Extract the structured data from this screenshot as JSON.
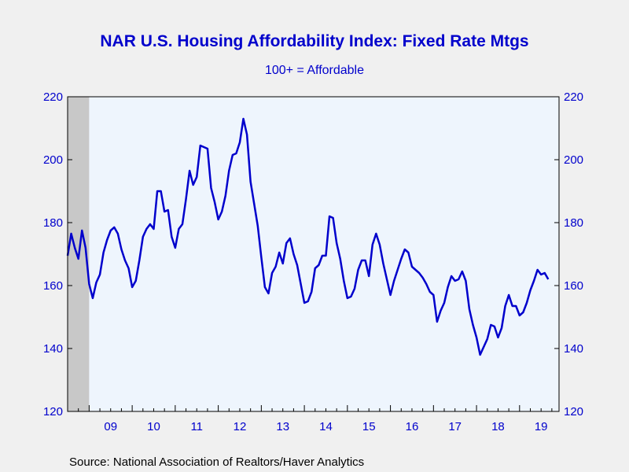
{
  "chart_data": {
    "type": "line",
    "title": "NAR U.S. Housing Affordability Index: Fixed Rate Mtgs",
    "subtitle": "100+ = Affordable",
    "source": "Source:  National Association of Realtors/Haver Analytics",
    "xlabel": "",
    "ylabel": "",
    "ylim": [
      120,
      220
    ],
    "yticks": [
      120,
      140,
      160,
      180,
      200,
      220
    ],
    "y_axis_right": true,
    "x_range": [
      2008.5,
      2019.9167
    ],
    "x_tick_labels": [
      "09",
      "10",
      "11",
      "12",
      "13",
      "14",
      "15",
      "16",
      "17",
      "18",
      "19"
    ],
    "recession_shading": [
      [
        2008.5,
        2009.0
      ]
    ],
    "colors": {
      "line": "#0000cc",
      "plot_bg": "#eef5fd",
      "recession": "#c8c8c8",
      "text": "#0000cc"
    },
    "series": [
      {
        "start": 2008.5,
        "step_months": 1,
        "values": [
          169.5,
          176.5,
          172.0,
          168.5,
          177.5,
          172.0,
          160.5,
          156.0,
          161.0,
          163.5,
          170.5,
          174.5,
          177.5,
          178.5,
          176.5,
          171.5,
          168.0,
          165.5,
          159.5,
          161.5,
          168.0,
          175.5,
          178.0,
          179.5,
          178.0,
          190.0,
          190.0,
          183.5,
          184.0,
          175.5,
          172.0,
          178.0,
          179.5,
          187.5,
          196.5,
          192.0,
          194.5,
          204.5,
          204.0,
          203.5,
          191.0,
          186.5,
          181.0,
          183.5,
          188.5,
          196.5,
          201.5,
          202.0,
          205.5,
          213.0,
          208.0,
          193.0,
          186.0,
          179.0,
          169.0,
          159.5,
          157.5,
          164.0,
          166.0,
          170.5,
          167.0,
          173.5,
          175.0,
          170.0,
          166.5,
          160.5,
          154.5,
          155.0,
          158.0,
          165.5,
          166.5,
          169.5,
          169.5,
          182.0,
          181.5,
          173.5,
          168.5,
          161.5,
          156.0,
          156.5,
          159.0,
          165.0,
          168.0,
          168.0,
          163.0,
          173.0,
          176.5,
          173.0,
          167.0,
          162.0,
          157.0,
          161.5,
          165.0,
          168.5,
          171.5,
          170.5,
          166.0,
          165.0,
          164.0,
          162.5,
          160.5,
          158.0,
          157.0,
          148.5,
          152.0,
          154.5,
          159.5,
          163.0,
          161.5,
          162.0,
          164.5,
          161.5,
          152.5,
          147.5,
          143.5,
          138.0,
          140.5,
          143.0,
          147.5,
          147.0,
          143.5,
          146.5,
          153.5,
          157.0,
          153.5,
          153.5,
          150.5,
          151.5,
          154.5,
          158.5,
          161.5,
          165.0,
          163.5,
          164.0,
          162.0
        ]
      }
    ]
  }
}
